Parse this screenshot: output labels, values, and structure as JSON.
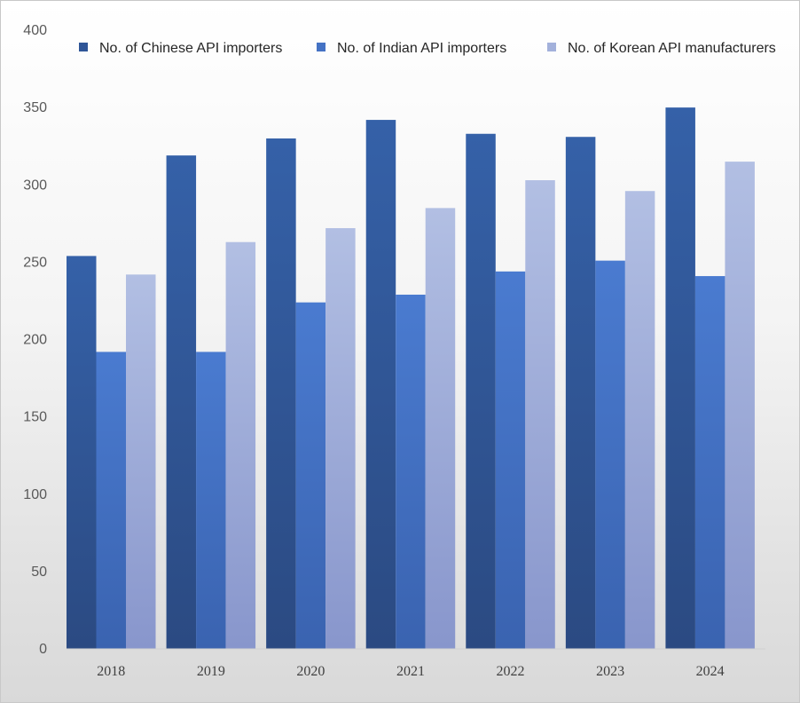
{
  "chart_data": {
    "type": "bar",
    "title": "",
    "xlabel": "",
    "ylabel": "",
    "ylim": [
      0,
      400
    ],
    "yticks": [
      0,
      50,
      100,
      150,
      200,
      250,
      300,
      350,
      400
    ],
    "grid": false,
    "legend_position": "top",
    "categories": [
      "2018",
      "2019",
      "2020",
      "2021",
      "2022",
      "2023",
      "2024"
    ],
    "series": [
      {
        "name": "No. of Chinese API importers",
        "color": "#2f5597",
        "values": [
          254,
          319,
          330,
          342,
          333,
          331,
          350
        ]
      },
      {
        "name": "No. of Indian API importers",
        "color": "#4472c4",
        "values": [
          192,
          192,
          224,
          229,
          244,
          251,
          241
        ]
      },
      {
        "name": "No. of Korean API manufacturers",
        "color": "#a3b1db",
        "values": [
          242,
          263,
          272,
          285,
          303,
          296,
          315
        ]
      }
    ]
  }
}
